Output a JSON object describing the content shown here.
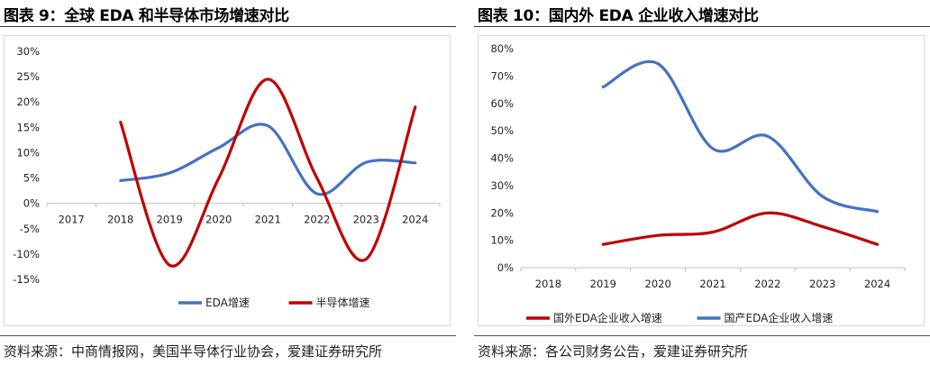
{
  "panels": [
    {
      "title": "图表 9：全球 EDA 和半导体市场增速对比",
      "source": "资料来源：中商情报网，美国半导体行业协会，爱建证券研究所"
    },
    {
      "title": "图表 10：国内外 EDA 企业收入增速对比",
      "source": "资料来源：各公司财务公告，爱建证券研究所"
    }
  ],
  "chart_data": [
    {
      "type": "line",
      "smooth": true,
      "categories": [
        "2017",
        "2018",
        "2019",
        "2020",
        "2021",
        "2022",
        "2023",
        "2024"
      ],
      "ylim": [
        -15,
        30
      ],
      "yticks": [
        "30%",
        "25%",
        "20%",
        "15%",
        "10%",
        "5%",
        "0%",
        "-5%",
        "-10%",
        "-15%"
      ],
      "grid": false,
      "legend_position": "bottom",
      "series": [
        {
          "name": "EDA增速",
          "color": "#4472C4",
          "x": [
            "2018",
            "2019",
            "2020",
            "2021",
            "2022",
            "2023",
            "2024"
          ],
          "values": [
            4.5,
            6.0,
            11.0,
            15.3,
            1.9,
            8.1,
            8.0
          ]
        },
        {
          "name": "半导体增速",
          "color": "#C00000",
          "x": [
            "2018",
            "2019",
            "2020",
            "2021",
            "2022",
            "2023",
            "2024"
          ],
          "values": [
            16.0,
            -12.2,
            5.0,
            24.5,
            5.0,
            -11.0,
            19.0
          ]
        }
      ]
    },
    {
      "type": "line",
      "smooth": true,
      "categories": [
        "2018",
        "2019",
        "2020",
        "2021",
        "2022",
        "2023",
        "2024"
      ],
      "ylim": [
        0,
        80
      ],
      "yticks": [
        "80%",
        "70%",
        "60%",
        "50%",
        "40%",
        "30%",
        "20%",
        "10%",
        "0%"
      ],
      "grid": false,
      "legend_position": "bottom",
      "series": [
        {
          "name": "国外EDA企业收入增速",
          "color": "#C00000",
          "x": [
            "2019",
            "2020",
            "2021",
            "2022",
            "2023",
            "2024"
          ],
          "values": [
            8.5,
            11.8,
            13.0,
            20.0,
            15.0,
            8.5
          ]
        },
        {
          "name": "国产EDA企业收入增速",
          "color": "#4472C4",
          "x": [
            "2019",
            "2020",
            "2021",
            "2022",
            "2023",
            "2024"
          ],
          "values": [
            66.0,
            74.5,
            43.5,
            48.0,
            26.0,
            20.5
          ]
        }
      ]
    }
  ]
}
